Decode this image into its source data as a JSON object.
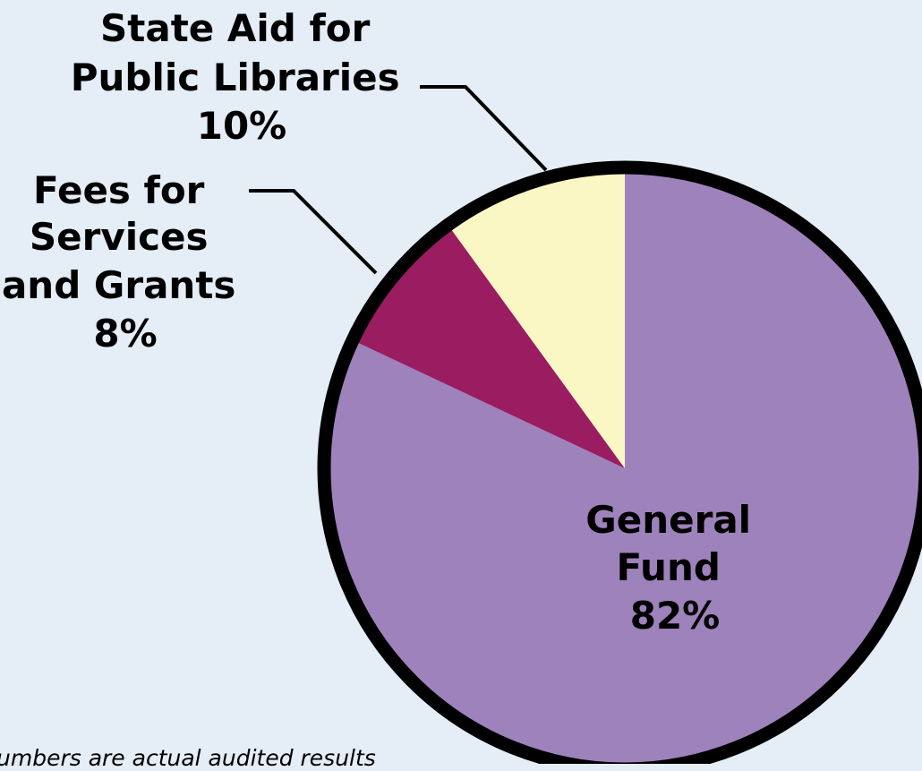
{
  "chart_data": {
    "type": "pie",
    "slices": [
      {
        "label": "General Fund",
        "label_lines": [
          "General",
          "Fund"
        ],
        "value": 82,
        "value_text": "82%",
        "color": "#9e82bb"
      },
      {
        "label": "Fees for Services and Grants",
        "label_lines": [
          "Fees for",
          "Services",
          "and Grants"
        ],
        "value": 8,
        "value_text": "8%",
        "color": "#9a1c61"
      },
      {
        "label": "State Aid for Public Libraries",
        "label_lines": [
          "State Aid for",
          "Public Libraries"
        ],
        "value": 10,
        "value_text": "10%",
        "color": "#fbf7c5"
      }
    ],
    "start_angle_deg": 0,
    "direction": "clockwise",
    "outline_color": "#000000",
    "background_color": "#e5edf6"
  },
  "footnote": "umbers are actual audited results"
}
